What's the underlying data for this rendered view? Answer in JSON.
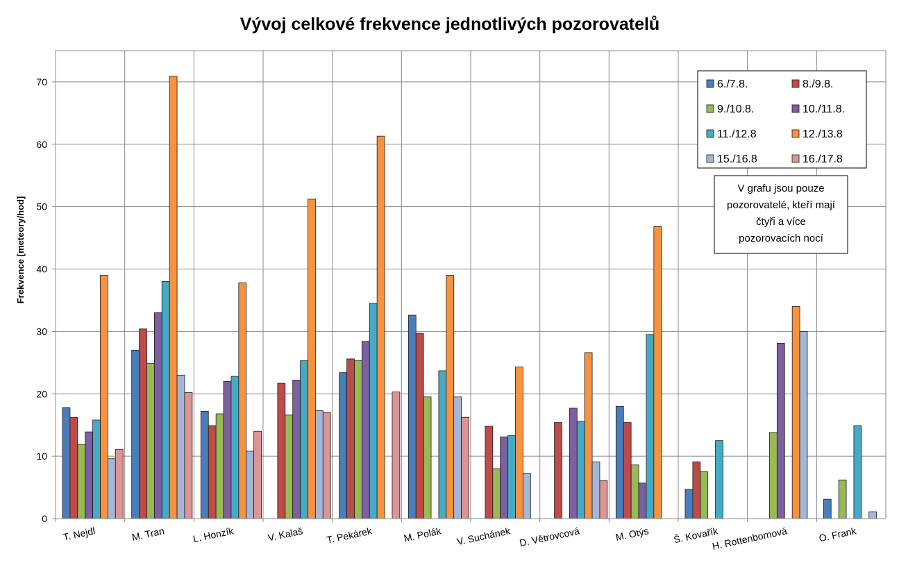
{
  "chart_data": {
    "type": "bar",
    "title": "Vývoj celkové frekvence jednotlivých pozorovatelů",
    "xlabel": "",
    "ylabel": "Frekvence [meteory/hod]",
    "ylim": [
      0,
      75
    ],
    "yticks": [
      0,
      10,
      20,
      30,
      40,
      50,
      60,
      70
    ],
    "grid": true,
    "legend_position": "top-right",
    "categories": [
      "T. Nejdl",
      "M. Tran",
      "L. Honzík",
      "V. Kalaš",
      "T. Pekárek",
      "M. Polák",
      "V. Suchánek",
      "D. Větrovcová",
      "M. Otýs",
      "Š. Kovařík",
      "H. Rottenbornová",
      "O. Frank"
    ],
    "series": [
      {
        "name": "6./7.8.",
        "color": "#4a7ebb",
        "values": [
          17.8,
          27.0,
          17.2,
          null,
          23.4,
          32.6,
          null,
          null,
          18.0,
          4.7,
          null,
          3.1
        ]
      },
      {
        "name": "8./9.8.",
        "color": "#be4b48",
        "values": [
          16.2,
          30.4,
          14.9,
          21.7,
          25.6,
          29.7,
          14.8,
          15.4,
          15.4,
          9.1,
          null,
          null
        ]
      },
      {
        "name": "9./10.8.",
        "color": "#98b954",
        "values": [
          11.9,
          24.9,
          16.8,
          16.6,
          25.3,
          19.5,
          8.0,
          null,
          8.6,
          7.5,
          13.8,
          6.2
        ]
      },
      {
        "name": "10./11.8.",
        "color": "#7d60a0",
        "values": [
          13.9,
          33.0,
          22.0,
          22.2,
          28.4,
          null,
          13.1,
          17.7,
          5.7,
          null,
          28.1,
          null
        ]
      },
      {
        "name": "11./12.8",
        "color": "#46aac5",
        "values": [
          15.8,
          38.0,
          22.8,
          25.3,
          34.5,
          23.7,
          13.3,
          15.6,
          29.5,
          12.5,
          null,
          14.9
        ]
      },
      {
        "name": "12./13.8",
        "color": "#f69240",
        "values": [
          39.0,
          70.9,
          37.8,
          51.2,
          61.3,
          39.0,
          24.3,
          26.6,
          46.8,
          null,
          34.0,
          null
        ]
      },
      {
        "name": "15./16.8",
        "color": "#a5b6d9",
        "values": [
          9.6,
          23.0,
          10.8,
          17.3,
          null,
          19.5,
          7.3,
          9.1,
          null,
          null,
          30.0,
          1.1
        ]
      },
      {
        "name": "16./17.8",
        "color": "#d99694",
        "values": [
          11.1,
          20.2,
          14.0,
          17.0,
          20.3,
          16.2,
          null,
          6.1,
          null,
          null,
          null,
          null
        ]
      }
    ],
    "note": "V grafu jsou pouze pozorovatelé, kteří mají čtyři a více pozorovacích nocí"
  }
}
